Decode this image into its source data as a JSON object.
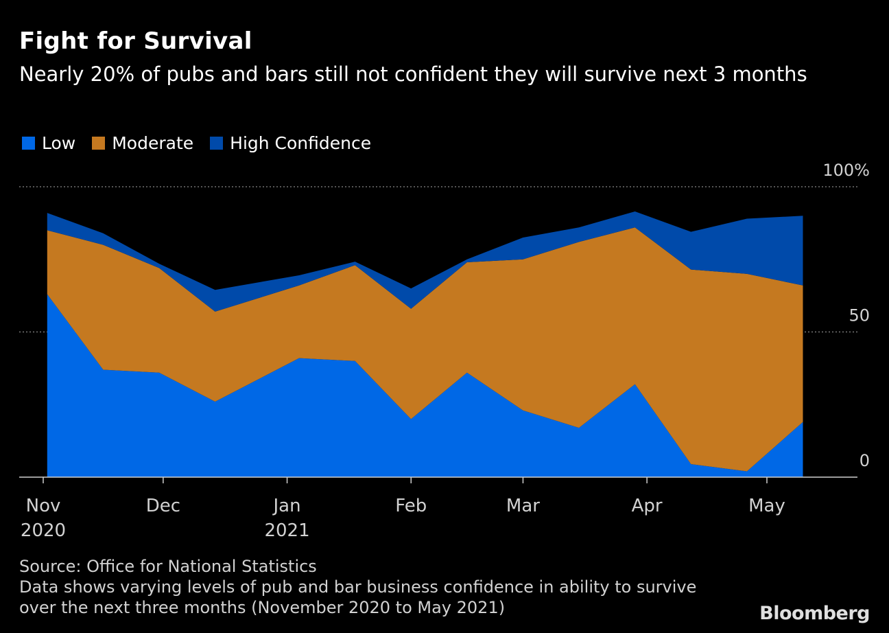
{
  "header": {
    "title": "Fight for Survival",
    "subtitle": "Nearly 20% of pubs and bars still not confident they will survive next 3 months"
  },
  "legend": [
    {
      "label": "Low",
      "color": "#0068e6"
    },
    {
      "label": "Moderate",
      "color": "#c57920"
    },
    {
      "label": "High Confidence",
      "color": "#004aaa"
    }
  ],
  "footer": {
    "source": "Source: Office for National Statistics",
    "note_line1": "Data shows varying levels of pub and bar business confidence in ability to survive",
    "note_line2": "over the next three months (November 2020 to May 2021)"
  },
  "brand": "Bloomberg",
  "chart_data": {
    "type": "area",
    "stacked": true,
    "title": "Fight for Survival",
    "x": [
      "2020-11-02",
      "2020-11-16",
      "2020-11-30",
      "2020-12-14",
      "2021-01-04",
      "2021-01-18",
      "2021-02-01",
      "2021-02-15",
      "2021-03-01",
      "2021-03-15",
      "2021-03-29",
      "2021-04-12",
      "2021-04-26",
      "2021-05-10"
    ],
    "series": [
      {
        "name": "Low",
        "values": [
          63,
          37,
          36,
          26,
          41,
          40,
          20,
          36,
          23,
          17,
          32,
          4.5,
          2,
          19
        ]
      },
      {
        "name": "Moderate",
        "values": [
          22,
          43,
          36,
          31,
          25,
          33,
          38,
          38,
          52,
          64,
          54,
          67,
          68,
          47
        ]
      },
      {
        "name": "High Confidence",
        "values": [
          6,
          4,
          1.5,
          7.5,
          3.5,
          1.2,
          7,
          1,
          7.5,
          5,
          5.5,
          13,
          19,
          24
        ]
      }
    ],
    "ylim": [
      0,
      100
    ],
    "y_ticks": [
      "0",
      "50",
      "100%"
    ],
    "y_tick_values": [
      0,
      50,
      100
    ],
    "x_ticks": [
      {
        "date": "2020-11-01",
        "month": "Nov",
        "year": "2020"
      },
      {
        "date": "2020-12-01",
        "month": "Dec",
        "year": ""
      },
      {
        "date": "2021-01-01",
        "month": "Jan",
        "year": "2021"
      },
      {
        "date": "2021-02-01",
        "month": "Feb",
        "year": ""
      },
      {
        "date": "2021-03-01",
        "month": "Mar",
        "year": ""
      },
      {
        "date": "2021-04-01",
        "month": "Apr",
        "year": ""
      },
      {
        "date": "2021-05-01",
        "month": "May",
        "year": ""
      }
    ],
    "gridlines": "dotted",
    "y_axis_side": "right",
    "legend_position": "top-left"
  }
}
